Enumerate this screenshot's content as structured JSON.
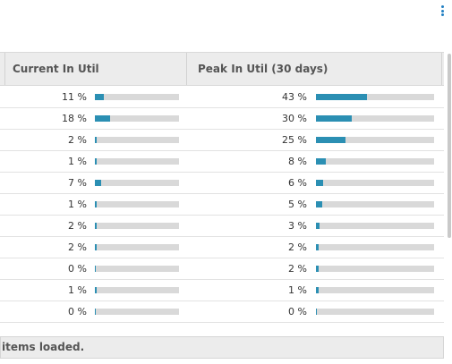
{
  "menu": {
    "icon": "kebab-vertical-icon"
  },
  "table": {
    "columns": [
      "Current In Util",
      "Peak In Util (30 days)"
    ],
    "rows": [
      {
        "current": "11 %",
        "current_value": 0.11,
        "peak": "43 %",
        "peak_value": 0.43
      },
      {
        "current": "18 %",
        "current_value": 0.18,
        "peak": "30 %",
        "peak_value": 0.3
      },
      {
        "current": "2 %",
        "current_value": 0.02,
        "peak": "25 %",
        "peak_value": 0.25
      },
      {
        "current": "1 %",
        "current_value": 0.01,
        "peak": "8 %",
        "peak_value": 0.08
      },
      {
        "current": "7 %",
        "current_value": 0.07,
        "peak": "6 %",
        "peak_value": 0.06
      },
      {
        "current": "1 %",
        "current_value": 0.01,
        "peak": "5 %",
        "peak_value": 0.05
      },
      {
        "current": "2 %",
        "current_value": 0.02,
        "peak": "3 %",
        "peak_value": 0.03
      },
      {
        "current": "2 %",
        "current_value": 0.02,
        "peak": "2 %",
        "peak_value": 0.02
      },
      {
        "current": "0 %",
        "current_value": 0.0,
        "peak": "2 %",
        "peak_value": 0.02
      },
      {
        "current": "1 %",
        "current_value": 0.01,
        "peak": "1 %",
        "peak_value": 0.01
      },
      {
        "current": "0 %",
        "current_value": 0.0,
        "peak": "0 %",
        "peak_value": 0.0
      }
    ],
    "bar_fill_color": "#2b8fb3",
    "bar_track_color": "#d9d9d9"
  },
  "footer": {
    "status": "items loaded."
  }
}
